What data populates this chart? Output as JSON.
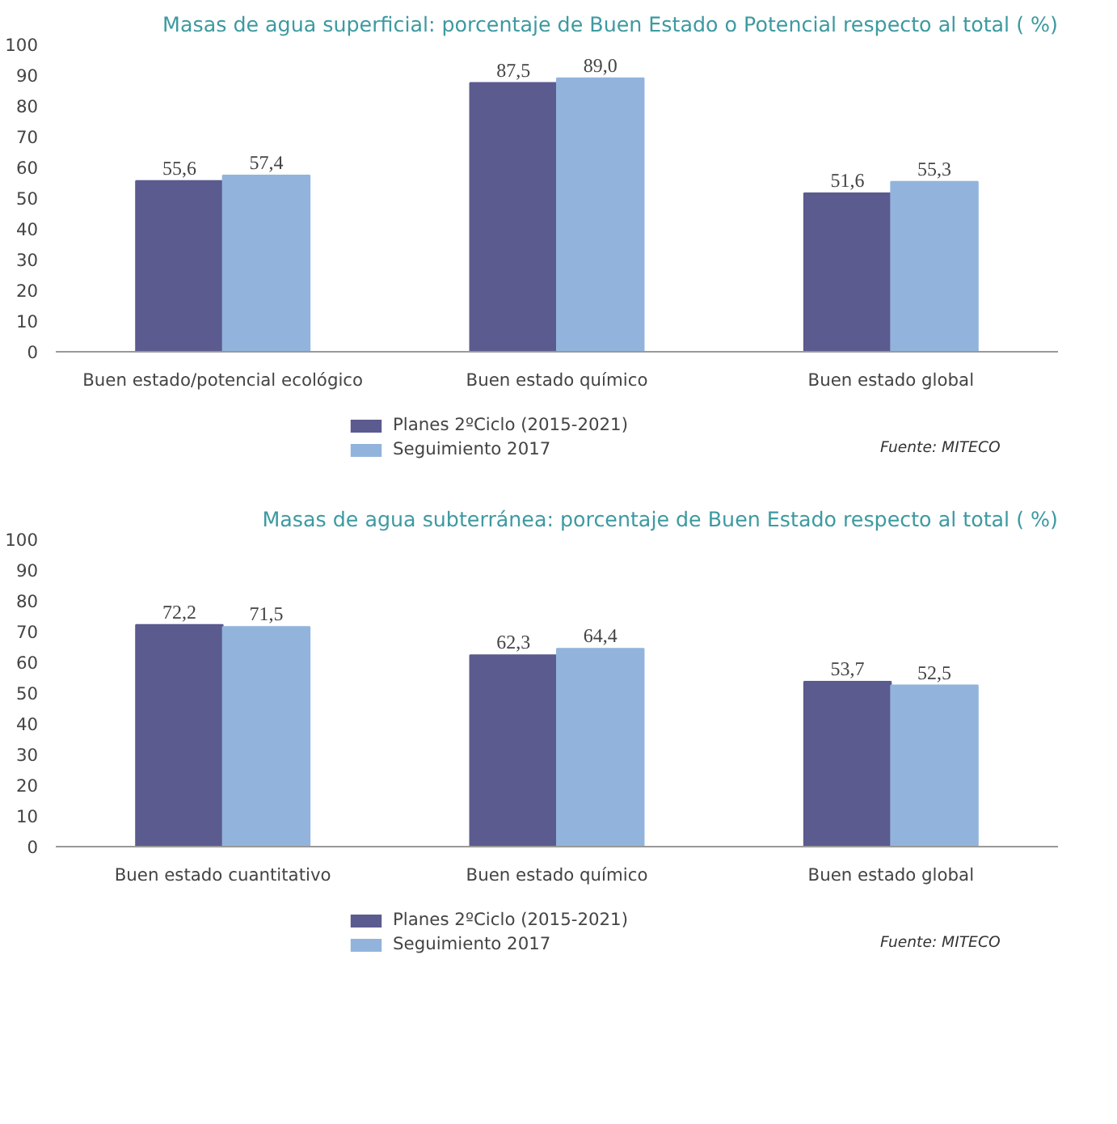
{
  "chart_data": [
    {
      "type": "bar",
      "title": "Masas de agua superficial: porcentaje de Buen Estado o Potencial respecto al total ( %)",
      "categories": [
        "Buen estado/potencial ecológico",
        "Buen estado químico",
        "Buen estado global"
      ],
      "series": [
        {
          "name": "Planes 2ºCiclo (2015-2021)",
          "color": "#5b5b8f",
          "values": [
            55.6,
            87.5,
            51.6
          ],
          "value_labels": [
            "55,6",
            "87,5",
            "51,6"
          ]
        },
        {
          "name": "Seguimiento 2017",
          "color": "#92b4dc",
          "values": [
            57.4,
            89.0,
            55.3
          ],
          "value_labels": [
            "57,4",
            "89,0",
            "55,3"
          ]
        }
      ],
      "ylim": [
        0,
        100
      ],
      "yticks": [
        0,
        10,
        20,
        30,
        40,
        50,
        60,
        70,
        80,
        90,
        100
      ],
      "legend": "bottom",
      "grid": false,
      "annotations": [
        "Fuente: MITECO"
      ]
    },
    {
      "type": "bar",
      "title": "Masas de agua subterránea: porcentaje de Buen Estado respecto al total ( %)",
      "categories": [
        "Buen estado cuantitativo",
        "Buen estado químico",
        "Buen estado global"
      ],
      "series": [
        {
          "name": "Planes 2ºCiclo (2015-2021)",
          "color": "#5b5b8f",
          "values": [
            72.2,
            62.3,
            53.7
          ],
          "value_labels": [
            "72,2",
            "62,3",
            "53,7"
          ]
        },
        {
          "name": "Seguimiento 2017",
          "color": "#92b4dc",
          "values": [
            71.5,
            64.4,
            52.5
          ],
          "value_labels": [
            "71,5",
            "64,4",
            "52,5"
          ]
        }
      ],
      "ylim": [
        0,
        100
      ],
      "yticks": [
        0,
        10,
        20,
        30,
        40,
        50,
        60,
        70,
        80,
        90,
        100
      ],
      "legend": "bottom",
      "grid": false,
      "annotations": [
        "Fuente: MITECO"
      ]
    }
  ]
}
